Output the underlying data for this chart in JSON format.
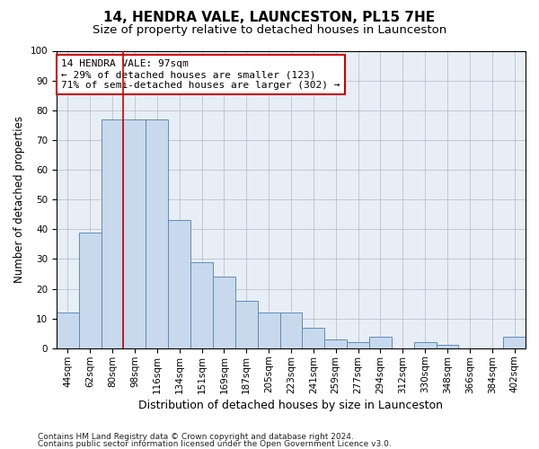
{
  "title": "14, HENDRA VALE, LAUNCESTON, PL15 7HE",
  "subtitle": "Size of property relative to detached houses in Launceston",
  "xlabel": "Distribution of detached houses by size in Launceston",
  "ylabel": "Number of detached properties",
  "categories": [
    "44sqm",
    "62sqm",
    "80sqm",
    "98sqm",
    "116sqm",
    "134sqm",
    "151sqm",
    "169sqm",
    "187sqm",
    "205sqm",
    "223sqm",
    "241sqm",
    "259sqm",
    "277sqm",
    "294sqm",
    "312sqm",
    "330sqm",
    "348sqm",
    "366sqm",
    "384sqm",
    "402sqm"
  ],
  "values": [
    12,
    39,
    77,
    77,
    77,
    43,
    29,
    24,
    16,
    12,
    12,
    7,
    3,
    2,
    4,
    0,
    2,
    1,
    0,
    0,
    4
  ],
  "bar_color": "#c9d9ed",
  "bar_edge_color": "#5b8db8",
  "vline_color": "#cc0000",
  "annotation_text": "14 HENDRA VALE: 97sqm\n← 29% of detached houses are smaller (123)\n71% of semi-detached houses are larger (302) →",
  "annotation_box_color": "#ffffff",
  "annotation_box_edge": "#cc0000",
  "ylim": [
    0,
    100
  ],
  "yticks": [
    0,
    10,
    20,
    30,
    40,
    50,
    60,
    70,
    80,
    90,
    100
  ],
  "grid_color": "#b0b8cc",
  "bg_color": "#e8eef5",
  "footer1": "Contains HM Land Registry data © Crown copyright and database right 2024.",
  "footer2": "Contains public sector information licensed under the Open Government Licence v3.0.",
  "title_fontsize": 11,
  "subtitle_fontsize": 9.5,
  "xlabel_fontsize": 9,
  "ylabel_fontsize": 8.5,
  "tick_fontsize": 7.5,
  "annotation_fontsize": 8,
  "footer_fontsize": 6.5
}
